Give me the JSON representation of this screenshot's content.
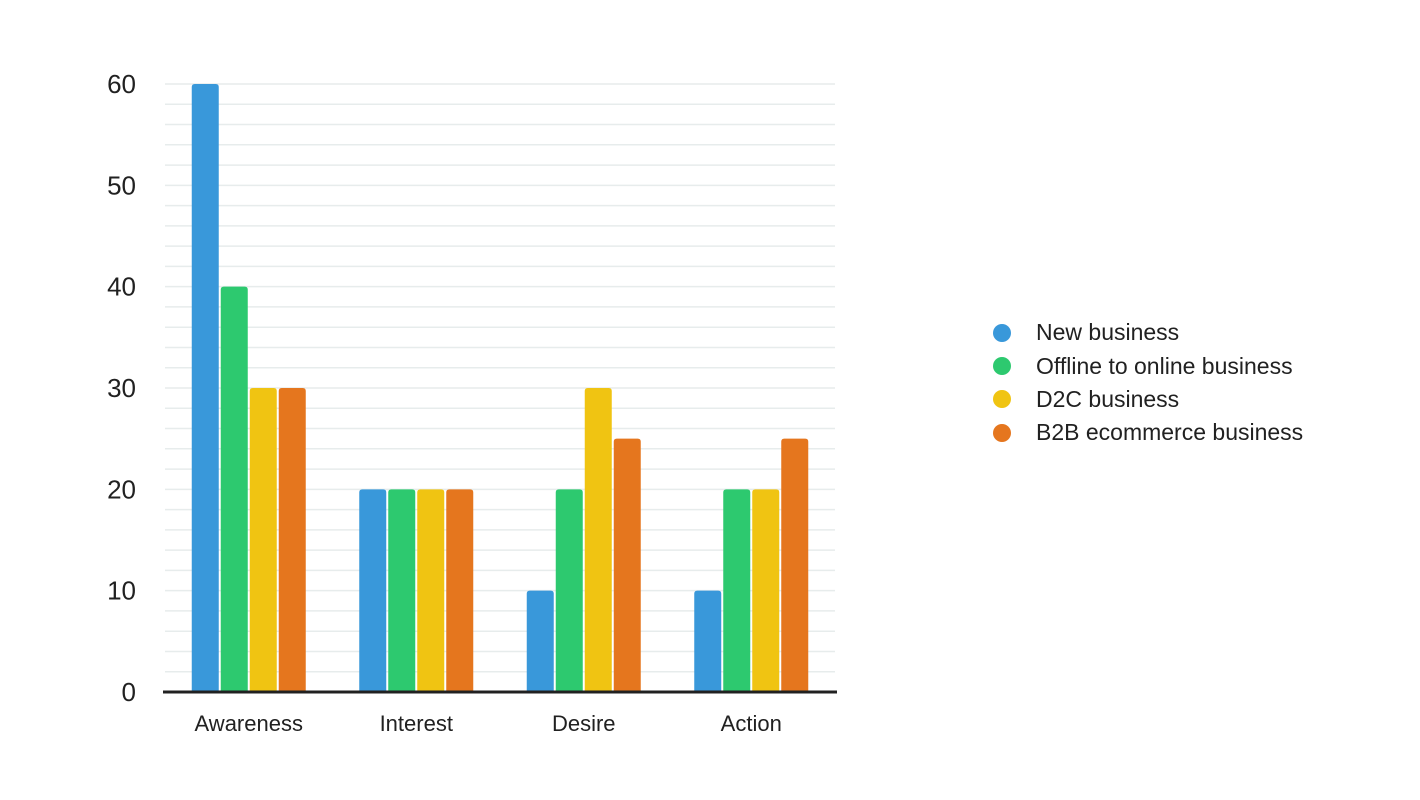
{
  "chart_data": {
    "type": "bar",
    "title": "",
    "xlabel": "",
    "ylabel": "",
    "categories": [
      "Awareness",
      "Interest",
      "Desire",
      "Action"
    ],
    "series": [
      {
        "name": "New business",
        "color": "#3998da",
        "values": [
          60,
          20,
          10,
          10
        ]
      },
      {
        "name": "Offline to online business",
        "color": "#2dc96f",
        "values": [
          40,
          20,
          20,
          20
        ]
      },
      {
        "name": "D2C business",
        "color": "#f0c412",
        "values": [
          30,
          20,
          30,
          20
        ]
      },
      {
        "name": "B2B ecommerce business",
        "color": "#e5761e",
        "values": [
          30,
          20,
          25,
          25
        ]
      }
    ],
    "ylim": [
      0,
      60
    ],
    "y_major_ticks": [
      0,
      10,
      20,
      30,
      40,
      50,
      60
    ],
    "y_minor_gridline_step": 2,
    "grid": true,
    "legend_position": "right"
  },
  "style": {
    "background": "#ffffff",
    "gridline_color": "#e7ecec",
    "axis_line_color": "#212121",
    "label_color": "#212121"
  }
}
